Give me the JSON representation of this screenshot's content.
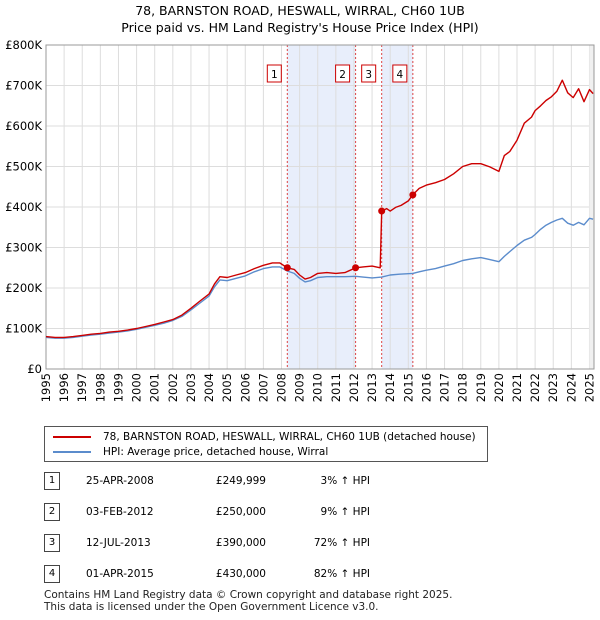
{
  "chart_data": {
    "type": "line",
    "title": "78, BARNSTON ROAD, HESWALL, WIRRAL, CH60 1UB",
    "subtitle": "Price paid vs. HM Land Registry's House Price Index (HPI)",
    "xlabel": "",
    "ylabel": "",
    "xlim": [
      1995,
      2025.25
    ],
    "ylim": [
      0,
      800000
    ],
    "grid": true,
    "y_ticks": [
      {
        "value": 0,
        "label": "£0"
      },
      {
        "value": 100000,
        "label": "£100K"
      },
      {
        "value": 200000,
        "label": "£200K"
      },
      {
        "value": 300000,
        "label": "£300K"
      },
      {
        "value": 400000,
        "label": "£400K"
      },
      {
        "value": 500000,
        "label": "£500K"
      },
      {
        "value": 600000,
        "label": "£600K"
      },
      {
        "value": 700000,
        "label": "£700K"
      },
      {
        "value": 800000,
        "label": "£800K"
      }
    ],
    "x_ticks": [
      "1995",
      "1996",
      "1997",
      "1998",
      "1999",
      "2000",
      "2001",
      "2002",
      "2003",
      "2004",
      "2005",
      "2006",
      "2007",
      "2008",
      "2009",
      "2010",
      "2011",
      "2012",
      "2013",
      "2014",
      "2015",
      "2016",
      "2017",
      "2018",
      "2019",
      "2020",
      "2021",
      "2022",
      "2023",
      "2024",
      "2025"
    ],
    "shaded_ranges": [
      [
        2008.32,
        2012.09
      ],
      [
        2013.53,
        2015.25
      ]
    ],
    "series": [
      {
        "name": "78, BARNSTON ROAD, HESWALL, WIRRAL, CH60 1UB (detached house)",
        "color": "#cc0000",
        "x": [
          1995.0,
          1995.5,
          1996.0,
          1996.5,
          1997.0,
          1997.5,
          1998.0,
          1998.5,
          1999.0,
          1999.5,
          2000.0,
          2000.5,
          2001.0,
          2001.5,
          2002.0,
          2002.5,
          2003.0,
          2003.5,
          2004.0,
          2004.3,
          2004.6,
          2005.0,
          2005.5,
          2006.0,
          2006.5,
          2007.0,
          2007.5,
          2007.9,
          2008.32,
          2008.7,
          2009.0,
          2009.3,
          2009.6,
          2010.0,
          2010.5,
          2011.0,
          2011.5,
          2012.09,
          2012.5,
          2013.0,
          2013.45,
          2013.53,
          2013.8,
          2014.0,
          2014.3,
          2014.6,
          2015.0,
          2015.25,
          2015.6,
          2016.0,
          2016.5,
          2017.0,
          2017.5,
          2018.0,
          2018.5,
          2019.0,
          2019.5,
          2020.0,
          2020.3,
          2020.6,
          2021.0,
          2021.4,
          2021.8,
          2022.0,
          2022.3,
          2022.6,
          2022.9,
          2023.2,
          2023.5,
          2023.8,
          2024.1,
          2024.4,
          2024.7,
          2025.0,
          2025.2
        ],
        "values": [
          80000,
          78000,
          78000,
          80000,
          83000,
          86000,
          88000,
          91000,
          93000,
          96000,
          100000,
          105000,
          110000,
          116000,
          122000,
          133000,
          150000,
          168000,
          185000,
          210000,
          228000,
          226000,
          232000,
          238000,
          248000,
          256000,
          262000,
          262000,
          249999,
          246000,
          232000,
          222000,
          226000,
          236000,
          238000,
          236000,
          238000,
          250000,
          252000,
          254000,
          250000,
          390000,
          396000,
          390000,
          399000,
          404000,
          415000,
          430000,
          446000,
          454000,
          460000,
          468000,
          482000,
          500000,
          507000,
          507000,
          499000,
          488000,
          527000,
          537000,
          565000,
          607000,
          622000,
          638000,
          650000,
          663000,
          672000,
          686000,
          713000,
          682000,
          670000,
          692000,
          660000,
          690000,
          680000
        ]
      },
      {
        "name": "HPI: Average price, detached house, Wirral",
        "color": "#5b8ccc",
        "x": [
          1995.0,
          1995.5,
          1996.0,
          1996.5,
          1997.0,
          1997.5,
          1998.0,
          1998.5,
          1999.0,
          1999.5,
          2000.0,
          2000.5,
          2001.0,
          2001.5,
          2002.0,
          2002.5,
          2003.0,
          2003.5,
          2004.0,
          2004.3,
          2004.6,
          2005.0,
          2005.5,
          2006.0,
          2006.5,
          2007.0,
          2007.5,
          2007.9,
          2008.32,
          2008.7,
          2009.0,
          2009.3,
          2009.6,
          2010.0,
          2010.5,
          2011.0,
          2011.5,
          2012.09,
          2012.5,
          2013.0,
          2013.53,
          2014.0,
          2014.5,
          2015.25,
          2015.6,
          2016.0,
          2016.5,
          2017.0,
          2017.5,
          2018.0,
          2018.5,
          2019.0,
          2019.5,
          2020.0,
          2020.3,
          2020.6,
          2021.0,
          2021.4,
          2021.8,
          2022.0,
          2022.3,
          2022.6,
          2022.9,
          2023.2,
          2023.5,
          2023.8,
          2024.1,
          2024.4,
          2024.7,
          2025.0,
          2025.2
        ],
        "values": [
          78000,
          76000,
          76000,
          78000,
          81000,
          84000,
          86000,
          89000,
          91000,
          94000,
          98000,
          103000,
          108000,
          113000,
          120000,
          130000,
          146000,
          163000,
          180000,
          203000,
          220000,
          218000,
          224000,
          230000,
          240000,
          248000,
          252000,
          252000,
          242000,
          236000,
          224000,
          215000,
          218000,
          226000,
          228000,
          228000,
          228000,
          229000,
          227000,
          225000,
          227000,
          232000,
          234000,
          236000,
          240000,
          244000,
          248000,
          254000,
          260000,
          268000,
          272000,
          275000,
          270000,
          265000,
          278000,
          290000,
          305000,
          318000,
          325000,
          332000,
          345000,
          355000,
          362000,
          368000,
          372000,
          360000,
          355000,
          362000,
          356000,
          372000,
          370000
        ]
      }
    ],
    "sales": [
      {
        "num": "1",
        "x": 2008.32,
        "price": 249999
      },
      {
        "num": "2",
        "x": 2012.09,
        "price": 250000
      },
      {
        "num": "3",
        "x": 2013.53,
        "price": 390000
      },
      {
        "num": "4",
        "x": 2015.25,
        "price": 430000
      }
    ]
  },
  "legend": {
    "property_label": "78, BARNSTON ROAD, HESWALL, WIRRAL, CH60 1UB (detached house)",
    "hpi_label": "HPI: Average price, detached house, Wirral"
  },
  "sales_table": [
    {
      "num": "1",
      "date": "25-APR-2008",
      "price": "£249,999",
      "hpi": "3% ↑ HPI"
    },
    {
      "num": "2",
      "date": "03-FEB-2012",
      "price": "£250,000",
      "hpi": "9% ↑ HPI"
    },
    {
      "num": "3",
      "date": "12-JUL-2013",
      "price": "£390,000",
      "hpi": "72% ↑ HPI"
    },
    {
      "num": "4",
      "date": "01-APR-2015",
      "price": "£430,000",
      "hpi": "82% ↑ HPI"
    }
  ],
  "footer": {
    "line1": "Contains HM Land Registry data © Crown copyright and database right 2025.",
    "line2": "This data is licensed under the Open Government Licence v3.0."
  }
}
